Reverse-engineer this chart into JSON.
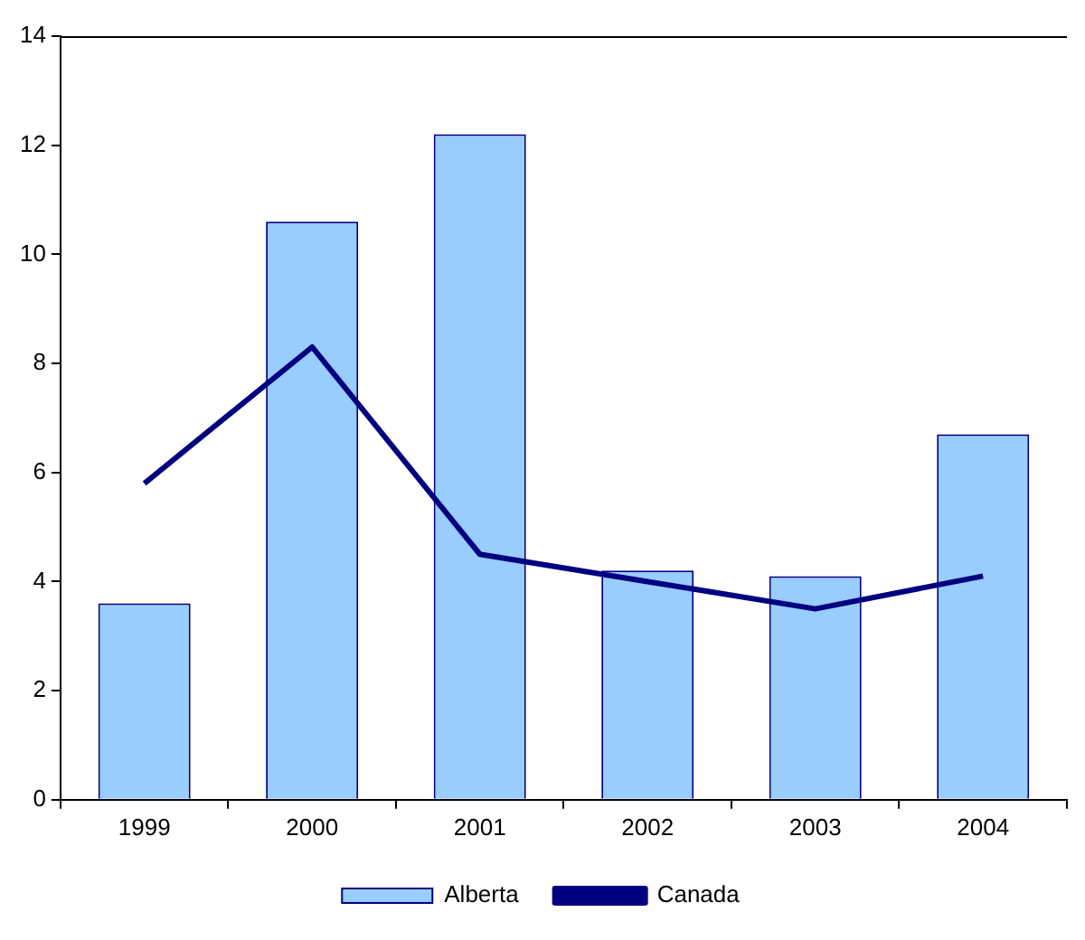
{
  "chart_data": {
    "type": "bar",
    "categories": [
      "1999",
      "2000",
      "2001",
      "2002",
      "2003",
      "2004"
    ],
    "series": [
      {
        "name": "Alberta",
        "color": "#99ccff",
        "values": [
          3.6,
          10.6,
          12.2,
          4.2,
          4.1,
          6.7
        ]
      },
      {
        "name": "Canada",
        "type": "line",
        "color": "#000080",
        "values": [
          5.8,
          8.3,
          4.5,
          4.0,
          3.5,
          4.1
        ]
      }
    ],
    "ylim": [
      0,
      14
    ],
    "yticks": [
      0,
      2,
      4,
      6,
      8,
      10,
      12,
      14
    ],
    "grid": false,
    "legend": "bottom",
    "marker": "none"
  }
}
